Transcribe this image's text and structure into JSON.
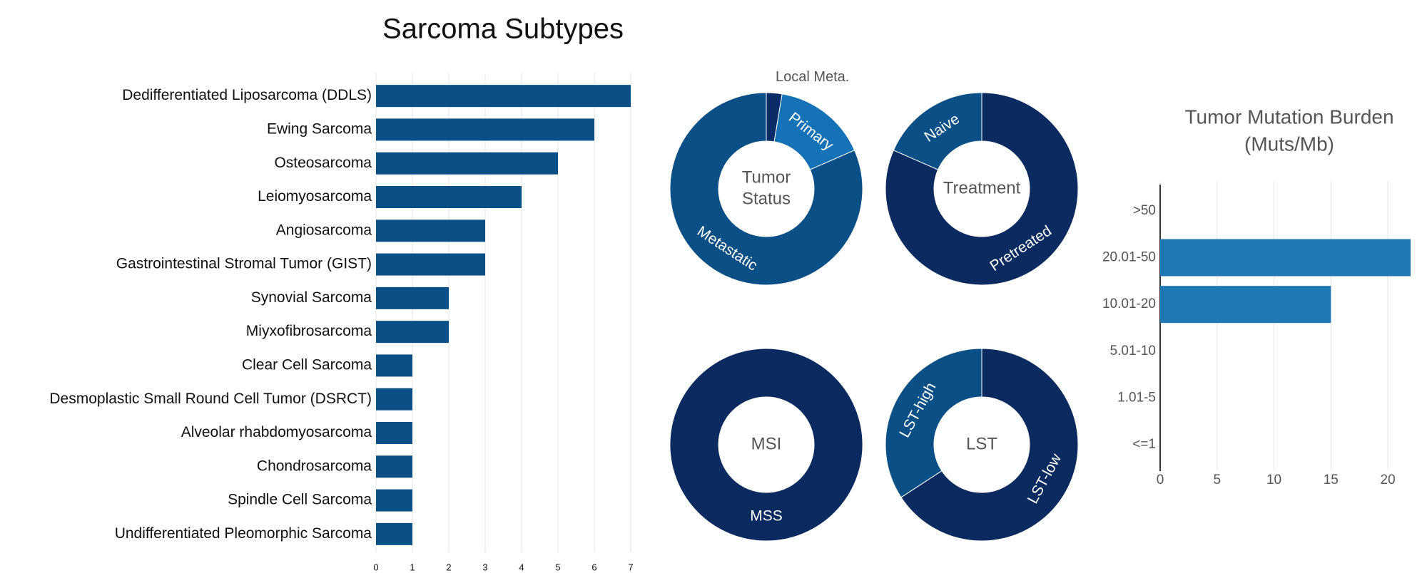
{
  "chart_data": [
    {
      "type": "hbar",
      "title": "Sarcoma Subtypes",
      "categories": [
        "Dedifferentiated Liposarcoma (DDLS)",
        "Ewing Sarcoma",
        "Osteosarcoma",
        "Leiomyosarcoma",
        "Angiosarcoma",
        "Gastrointestinal Stromal Tumor (GIST)",
        "Synovial Sarcoma",
        "Miyxofibrosarcoma",
        "Clear Cell Sarcoma",
        "Desmoplastic Small Round Cell Tumor (DSRCT)",
        "Alveolar rhabdomyosarcoma",
        "Chondrosarcoma",
        "Spindle Cell Sarcoma",
        "Undifferentiated Pleomorphic Sarcoma"
      ],
      "values": [
        7,
        6,
        5,
        4,
        3,
        3,
        2,
        2,
        1,
        1,
        1,
        1,
        1,
        1
      ],
      "color": "#0b4f87",
      "xlim": [
        0,
        7
      ],
      "xticks": [
        0,
        1,
        2,
        3,
        4,
        5,
        6,
        7
      ],
      "grid": true
    },
    {
      "type": "donut",
      "center_label": [
        "Tumor",
        "Status"
      ],
      "labels": [
        "Local Meta.",
        "Primary",
        "Metastatic"
      ],
      "values": [
        1,
        6,
        31
      ],
      "colors": [
        "#0a2d68",
        "#1672b6",
        "#0b4f87"
      ]
    },
    {
      "type": "donut",
      "center_label": [
        "Treatment"
      ],
      "labels": [
        "Pretreated",
        "Naive"
      ],
      "values": [
        31,
        7
      ],
      "colors": [
        "#0b2a60",
        "#0b4f87"
      ]
    },
    {
      "type": "donut",
      "center_label": [
        "MSI"
      ],
      "labels": [
        "MSS"
      ],
      "values": [
        38
      ],
      "colors": [
        "#0b2a60"
      ]
    },
    {
      "type": "donut",
      "center_label": [
        "LST"
      ],
      "labels": [
        "LST-low",
        "LST-high"
      ],
      "values": [
        25,
        13
      ],
      "colors": [
        "#0b2a60",
        "#0b4f87"
      ]
    },
    {
      "type": "hbar",
      "title": [
        "Tumor Mutation Burden",
        "(Muts/Mb)"
      ],
      "categories": [
        ">50",
        "20.01-50",
        "10.01-20",
        "5.01-10",
        "1.01-5",
        "<=1"
      ],
      "values": [
        0,
        22,
        15,
        0,
        0,
        0
      ],
      "color": "#1f77b4",
      "xlim": [
        0,
        22
      ],
      "xticks": [
        0,
        5,
        10,
        15,
        20
      ],
      "grid": true
    }
  ]
}
